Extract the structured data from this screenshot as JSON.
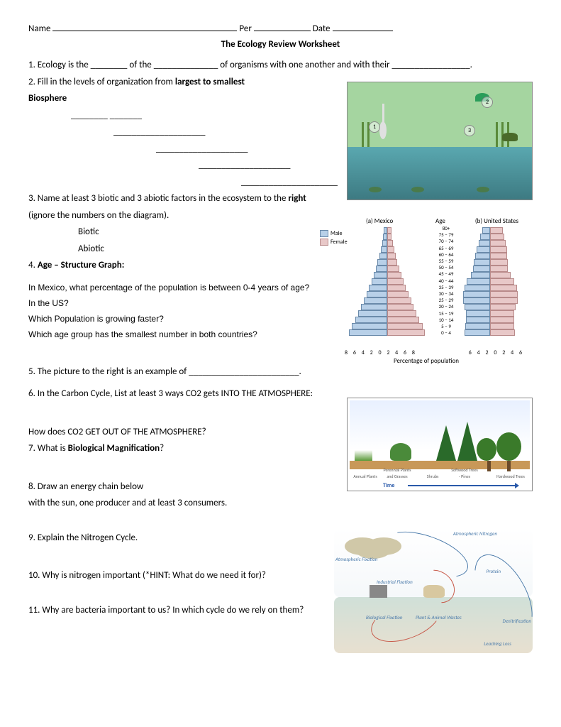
{
  "header": {
    "name_label": "Name",
    "per_label": "Per",
    "date_label": "Date"
  },
  "title": "The Ecology Review Worksheet",
  "q1": {
    "prefix": "1. Ecology is the ________ of the ______________ of organisms with one another and with their _________________."
  },
  "q2": {
    "line": "2. Fill in the levels of organization from ",
    "bold": "largest to smallest",
    "biosphere": "Biosphere"
  },
  "q3": {
    "line1": "3. Name at least 3 biotic and 3 abiotic factors in the ecosystem to the ",
    "bold": "right",
    "line2": "(ignore the numbers on the diagram).",
    "biotic": "Biotic",
    "abiotic": "Abiotic"
  },
  "q4": {
    "num": "4. ",
    "title": "Age – Structure Graph:",
    "l1": "In Mexico, what percentage of the population is between 0-4 years of age?",
    "l2": "In the US?",
    "l3": "Which Population is growing faster?",
    "l4": "Which age group has the smallest number in both countries?"
  },
  "q5": "5. The picture to the right is an example of ________________________.",
  "q6": {
    "l1": "6. In the Carbon Cycle, List at least 3 ways CO2 gets INTO THE ATMOSPHERE:",
    "l2": "How does CO2 GET OUT OF THE ATMOSPHERE?"
  },
  "q7": {
    "prefix": "7. What is ",
    "bold": "Biological Magnification",
    "suffix": "?"
  },
  "q8": {
    "l1": "8. Draw an energy chain below",
    "l2": "with the sun, one producer and at least 3 consumers."
  },
  "q9": "9. Explain the Nitrogen Cycle.",
  "q10": "10. Why is nitrogen important (*HINT: What do we need it for)?",
  "q11": "11. Why are bacteria important to us? In which cycle do we rely on them?",
  "age_chart": {
    "title_a": "(a)  Mexico",
    "title_age": "Age",
    "title_b": "(b)  United States",
    "legend_male": "Male",
    "legend_female": "Female",
    "age_labels": [
      "80+",
      "75 – 79",
      "70 – 74",
      "65 – 69",
      "60 – 64",
      "55 – 59",
      "50 – 54",
      "45 – 49",
      "40 – 44",
      "35 – 39",
      "30 – 34",
      "25 – 29",
      "20 – 24",
      "15 – 19",
      "10 – 14",
      "5 – 9",
      "0 – 4"
    ],
    "mexico_male": [
      0.4,
      0.5,
      0.7,
      1.0,
      1.3,
      1.6,
      2.0,
      2.4,
      2.8,
      3.3,
      3.8,
      4.3,
      4.8,
      5.4,
      6.0,
      6.6,
      7.2
    ],
    "mexico_female": [
      0.5,
      0.6,
      0.8,
      1.1,
      1.4,
      1.7,
      2.1,
      2.5,
      2.9,
      3.4,
      3.9,
      4.4,
      4.9,
      5.4,
      6.0,
      6.6,
      7.1
    ],
    "us_male": [
      1.0,
      1.3,
      1.6,
      1.9,
      2.1,
      2.3,
      2.4,
      2.8,
      3.4,
      3.8,
      4.0,
      4.0,
      3.8,
      3.6,
      3.6,
      3.7,
      3.8
    ],
    "us_female": [
      1.8,
      2.0,
      2.2,
      2.4,
      2.4,
      2.5,
      2.6,
      3.0,
      3.6,
      4.0,
      4.1,
      4.1,
      3.8,
      3.5,
      3.5,
      3.6,
      3.7
    ],
    "xticks_mex": "8  6  4  2  0  2  4  6  8",
    "xticks_us": "6  4  2  0  2  4  6",
    "xlabel": "Percentage of population",
    "male_color": "#b8d0e8",
    "female_color": "#e8c8c8"
  },
  "succession": {
    "caps": [
      "Annual Plants",
      "Perennial Plants and Grasses",
      "Shrubs",
      "Softwood Trees - Pines",
      "Hardwood Trees"
    ],
    "time": "Time"
  },
  "nitrogen": {
    "labels": {
      "atm_n": "Atmospheric Nitrogen",
      "atm_fix": "Atmospheric Fixation",
      "ind_fix": "Industrial Fixation",
      "bio_fix": "Biological Fixation",
      "protein": "Protein",
      "wastes": "Plant & Animal Wastes",
      "denit": "Denitrification",
      "leach": "Leaching Loss"
    }
  }
}
